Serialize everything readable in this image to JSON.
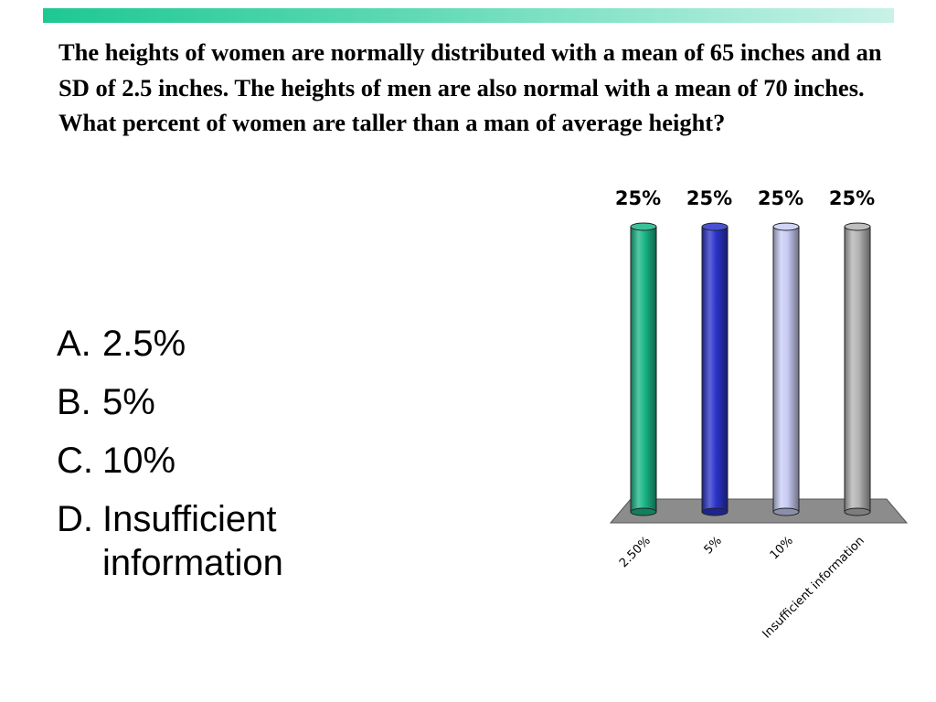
{
  "question": "The heights of women are normally distributed with a mean of 65 inches and an SD of 2.5 inches. The heights of men are also normal with a mean of 70 inches. What percent of women are taller than a man of average height?",
  "choices": [
    {
      "letter": "A.",
      "text": "2.5%"
    },
    {
      "letter": "B.",
      "text": "5%"
    },
    {
      "letter": "C.",
      "text": "10%"
    },
    {
      "letter": "D.",
      "text": "Insufficient information"
    }
  ],
  "colors": {
    "top_bar": "#1ec893",
    "floor": "#8c8c8c"
  },
  "chart_data": {
    "type": "bar",
    "style": "3d-cylinder",
    "categories": [
      "2.50%",
      "5%",
      "10%",
      "Insufficient information"
    ],
    "values": [
      25,
      25,
      25,
      25
    ],
    "data_labels": [
      "25%",
      "25%",
      "25%",
      "25%"
    ],
    "colors": [
      "#1ab585",
      "#2b33c9",
      "#c8ccf4",
      "#b3b3b3"
    ],
    "ylim": [
      0,
      25
    ],
    "grid": false,
    "legend": "none"
  }
}
